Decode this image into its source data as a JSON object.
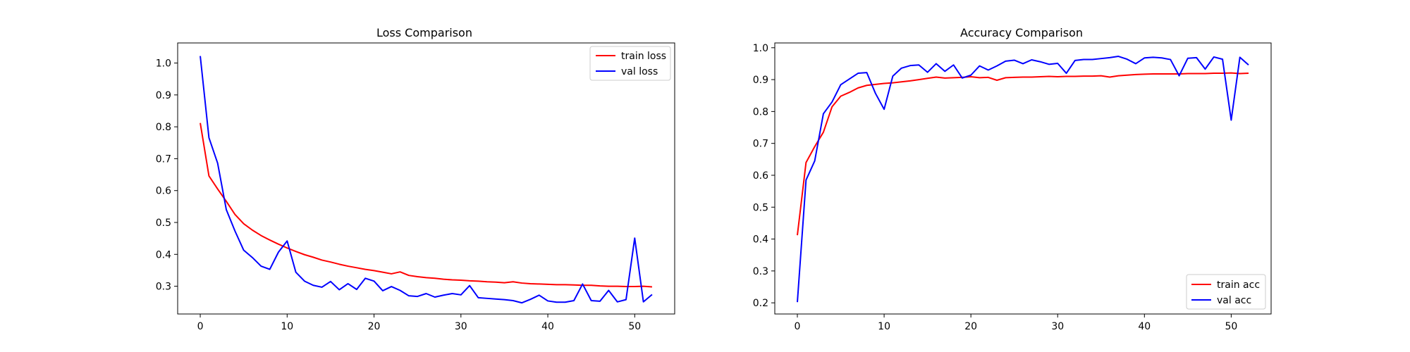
{
  "chart_data": [
    {
      "type": "line",
      "title": "Loss Comparison",
      "xlabel": "",
      "ylabel": "",
      "xlim": [
        -2.6,
        54.6
      ],
      "ylim": [
        0.213,
        1.063
      ],
      "xticks": [
        0,
        10,
        20,
        30,
        40,
        50
      ],
      "yticks": [
        0.3,
        0.4,
        0.5,
        0.6,
        0.7,
        0.8,
        0.9,
        1.0
      ],
      "ytick_labels": [
        "0.3",
        "0.4",
        "0.5",
        "0.6",
        "0.7",
        "0.8",
        "0.9",
        "1.0"
      ],
      "legend_position": "top-right",
      "grid": false,
      "x": [
        0,
        1,
        2,
        3,
        4,
        5,
        6,
        7,
        8,
        9,
        10,
        11,
        12,
        13,
        14,
        15,
        16,
        17,
        18,
        19,
        20,
        21,
        22,
        23,
        24,
        25,
        26,
        27,
        28,
        29,
        30,
        31,
        32,
        33,
        34,
        35,
        36,
        37,
        38,
        39,
        40,
        41,
        42,
        43,
        44,
        45,
        46,
        47,
        48,
        49,
        50,
        51,
        52
      ],
      "series": [
        {
          "name": "train loss",
          "color": "#ff0000",
          "values": [
            0.812,
            0.646,
            0.605,
            0.566,
            0.525,
            0.496,
            0.476,
            0.459,
            0.445,
            0.432,
            0.42,
            0.409,
            0.399,
            0.391,
            0.382,
            0.376,
            0.369,
            0.363,
            0.358,
            0.353,
            0.349,
            0.344,
            0.339,
            0.345,
            0.334,
            0.33,
            0.327,
            0.325,
            0.322,
            0.32,
            0.319,
            0.317,
            0.316,
            0.314,
            0.313,
            0.311,
            0.314,
            0.31,
            0.308,
            0.307,
            0.306,
            0.305,
            0.305,
            0.304,
            0.303,
            0.303,
            0.301,
            0.3,
            0.3,
            0.299,
            0.299,
            0.3,
            0.298
          ]
        },
        {
          "name": "val loss",
          "color": "#0000ff",
          "values": [
            1.022,
            0.766,
            0.686,
            0.54,
            0.473,
            0.413,
            0.39,
            0.363,
            0.353,
            0.407,
            0.442,
            0.344,
            0.316,
            0.303,
            0.297,
            0.315,
            0.289,
            0.308,
            0.29,
            0.325,
            0.316,
            0.286,
            0.299,
            0.287,
            0.27,
            0.268,
            0.277,
            0.266,
            0.272,
            0.277,
            0.273,
            0.302,
            0.264,
            0.262,
            0.26,
            0.258,
            0.255,
            0.248,
            0.259,
            0.272,
            0.254,
            0.25,
            0.25,
            0.255,
            0.307,
            0.255,
            0.253,
            0.287,
            0.251,
            0.258,
            0.451,
            0.251,
            0.274
          ]
        }
      ]
    },
    {
      "type": "line",
      "title": "Accuracy Comparison",
      "xlabel": "",
      "ylabel": "",
      "xlim": [
        -2.6,
        54.6
      ],
      "ylim": [
        0.165,
        1.015
      ],
      "xticks": [
        0,
        10,
        20,
        30,
        40,
        50
      ],
      "yticks": [
        0.2,
        0.3,
        0.4,
        0.5,
        0.6,
        0.7,
        0.8,
        0.9,
        1.0
      ],
      "ytick_labels": [
        "0.2",
        "0.3",
        "0.4",
        "0.5",
        "0.6",
        "0.7",
        "0.8",
        "0.9",
        "1.0"
      ],
      "legend_position": "bottom-right",
      "grid": false,
      "x": [
        0,
        1,
        2,
        3,
        4,
        5,
        6,
        7,
        8,
        9,
        10,
        11,
        12,
        13,
        14,
        15,
        16,
        17,
        18,
        19,
        20,
        21,
        22,
        23,
        24,
        25,
        26,
        27,
        28,
        29,
        30,
        31,
        32,
        33,
        34,
        35,
        36,
        37,
        38,
        39,
        40,
        41,
        42,
        43,
        44,
        45,
        46,
        47,
        48,
        49,
        50,
        51,
        52
      ],
      "series": [
        {
          "name": "train acc",
          "color": "#ff0000",
          "values": [
            0.412,
            0.64,
            0.69,
            0.735,
            0.815,
            0.848,
            0.86,
            0.874,
            0.882,
            0.885,
            0.888,
            0.89,
            0.893,
            0.896,
            0.9,
            0.904,
            0.908,
            0.905,
            0.906,
            0.907,
            0.909,
            0.906,
            0.907,
            0.898,
            0.906,
            0.907,
            0.908,
            0.908,
            0.909,
            0.91,
            0.909,
            0.91,
            0.91,
            0.911,
            0.911,
            0.912,
            0.908,
            0.912,
            0.914,
            0.916,
            0.917,
            0.918,
            0.918,
            0.918,
            0.918,
            0.919,
            0.919,
            0.919,
            0.92,
            0.92,
            0.921,
            0.919,
            0.92
          ]
        },
        {
          "name": "val acc",
          "color": "#0000ff",
          "values": [
            0.202,
            0.585,
            0.645,
            0.793,
            0.83,
            0.884,
            0.902,
            0.92,
            0.922,
            0.857,
            0.807,
            0.911,
            0.936,
            0.944,
            0.946,
            0.923,
            0.95,
            0.926,
            0.946,
            0.905,
            0.914,
            0.943,
            0.93,
            0.943,
            0.958,
            0.961,
            0.95,
            0.962,
            0.956,
            0.948,
            0.951,
            0.92,
            0.96,
            0.963,
            0.963,
            0.966,
            0.969,
            0.973,
            0.964,
            0.95,
            0.968,
            0.97,
            0.968,
            0.963,
            0.912,
            0.967,
            0.969,
            0.933,
            0.971,
            0.964,
            0.773,
            0.97,
            0.946
          ]
        }
      ]
    }
  ]
}
